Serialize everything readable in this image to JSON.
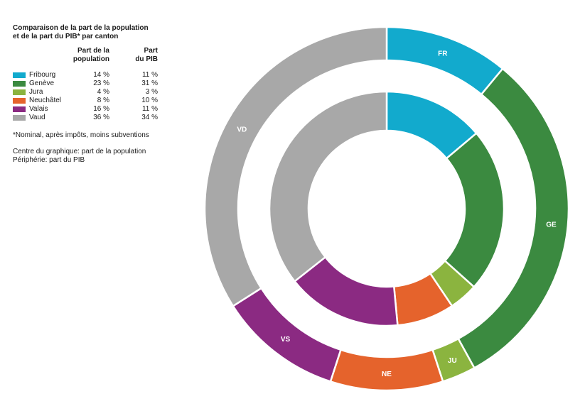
{
  "chart_data": {
    "type": "donut",
    "title_line1": "Comparaison de la part de la population",
    "title_line2": "et de la part du PIB* par canton",
    "columns": {
      "population_line1": "Part de la",
      "population_line2": "population",
      "pib_line1": "Part",
      "pib_line2": "du PIB"
    },
    "categories": [
      "Fribourg",
      "Genève",
      "Jura",
      "Neuchâtel",
      "Valais",
      "Vaud"
    ],
    "codes": [
      "FR",
      "GE",
      "JU",
      "NE",
      "VS",
      "VD"
    ],
    "colors": [
      "#12aacd",
      "#3b8a40",
      "#8bb43f",
      "#e5632c",
      "#8b2a82",
      "#a8a8a8"
    ],
    "series": [
      {
        "name": "Part de la population",
        "ring": "inner",
        "values": [
          14,
          23,
          4,
          8,
          16,
          36
        ],
        "labels": [
          "14 %",
          "23 %",
          "4 %",
          "8 %",
          "16 %",
          "36 %"
        ]
      },
      {
        "name": "Part du PIB",
        "ring": "outer",
        "values": [
          11,
          31,
          3,
          10,
          11,
          34
        ],
        "labels": [
          "11 %",
          "31 %",
          "3 %",
          "10 %",
          "11 %",
          "34 %"
        ]
      }
    ],
    "footnote": "*Nominal, après impôts, moins subventions",
    "note_line1": "Centre du graphique: part de la population",
    "note_line2": "Périphérie: part du PIB"
  }
}
